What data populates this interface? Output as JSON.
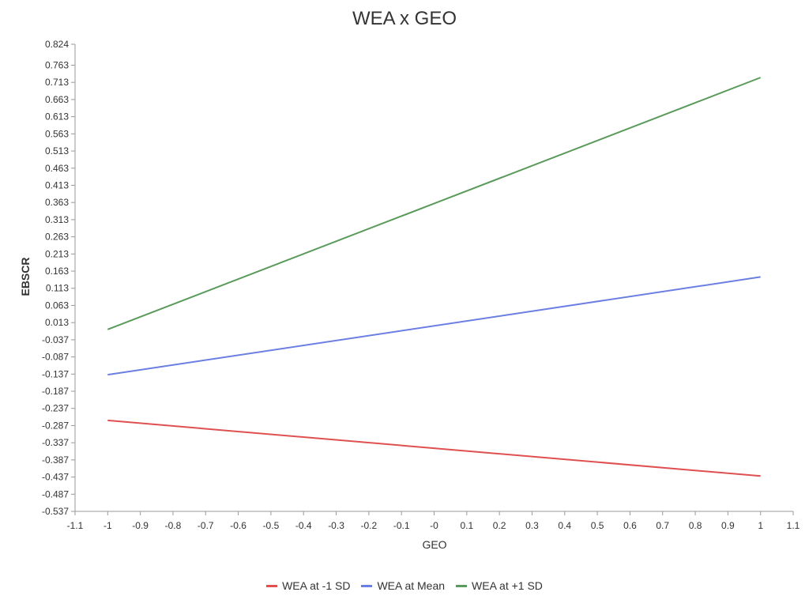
{
  "chart_data": {
    "type": "line",
    "title": "WEA x GEO",
    "xlabel": "GEO",
    "ylabel": "EBSCR",
    "xlim": [
      -1.1,
      1.1
    ],
    "ylim": [
      -0.537,
      0.824
    ],
    "x_ticks": [
      "-1.1",
      "-1",
      "-0.9",
      "-0.8",
      "-0.7",
      "-0.6",
      "-0.5",
      "-0.4",
      "-0.3",
      "-0.2",
      "-0.1",
      "-0",
      "0.1",
      "0.2",
      "0.3",
      "0.4",
      "0.5",
      "0.6",
      "0.7",
      "0.8",
      "0.9",
      "1",
      "1.1"
    ],
    "y_ticks": [
      "0.824",
      "0.763",
      "0.713",
      "0.663",
      "0.613",
      "0.563",
      "0.513",
      "0.463",
      "0.413",
      "0.363",
      "0.313",
      "0.263",
      "0.213",
      "0.163",
      "0.113",
      "0.063",
      "0.013",
      "-0.037",
      "-0.087",
      "-0.137",
      "-0.187",
      "-0.237",
      "-0.287",
      "-0.337",
      "-0.387",
      "-0.437",
      "-0.487",
      "-0.537"
    ],
    "grid": false,
    "legend_position": "bottom",
    "series": [
      {
        "name": "WEA at -1 SD",
        "color": "#e05050",
        "x": [
          -1,
          1
        ],
        "y": [
          -0.272,
          -0.434
        ]
      },
      {
        "name": "WEA at Mean",
        "color": "#6b7fe3",
        "x": [
          -1,
          1
        ],
        "y": [
          -0.139,
          0.146
        ]
      },
      {
        "name": "WEA at +1 SD",
        "color": "#5a9a5a",
        "x": [
          -1,
          1
        ],
        "y": [
          -0.007,
          0.727
        ]
      }
    ]
  }
}
